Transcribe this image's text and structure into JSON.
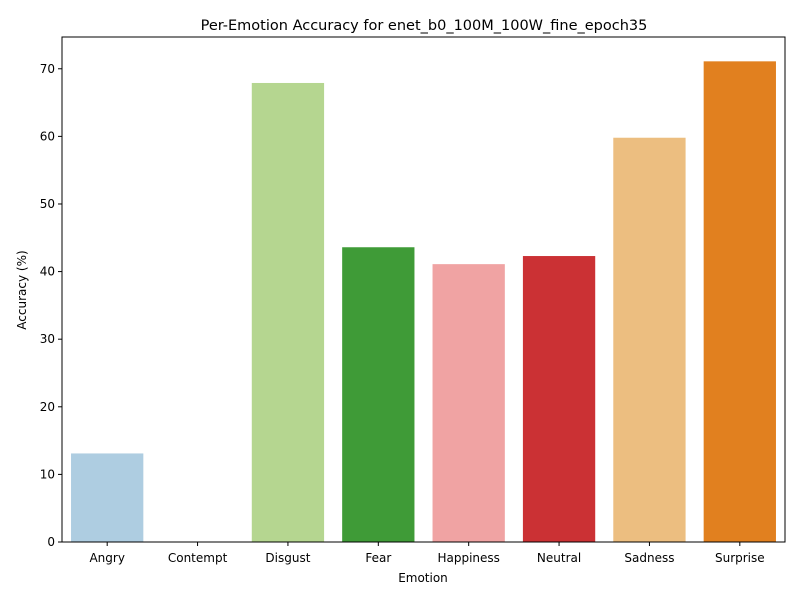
{
  "chart_data": {
    "type": "bar",
    "title": "Per-Emotion Accuracy for enet_b0_100M_100W_fine_epoch35",
    "xlabel": "Emotion",
    "ylabel": "Accuracy (%)",
    "categories": [
      "Angry",
      "Contempt",
      "Disgust",
      "Fear",
      "Happiness",
      "Neutral",
      "Sadness",
      "Surprise"
    ],
    "values": [
      13.1,
      0.0,
      67.9,
      43.6,
      41.1,
      42.3,
      59.8,
      71.1
    ],
    "colors": [
      "#aecde1",
      "#1f78b4",
      "#b5d690",
      "#3f9b37",
      "#f0a3a3",
      "#cb3134",
      "#ecbe80",
      "#e1801f"
    ],
    "ylim": [
      0,
      74.7
    ],
    "yticks": [
      0,
      10,
      20,
      30,
      40,
      50,
      60,
      70
    ],
    "grid": false,
    "legend": "none"
  }
}
